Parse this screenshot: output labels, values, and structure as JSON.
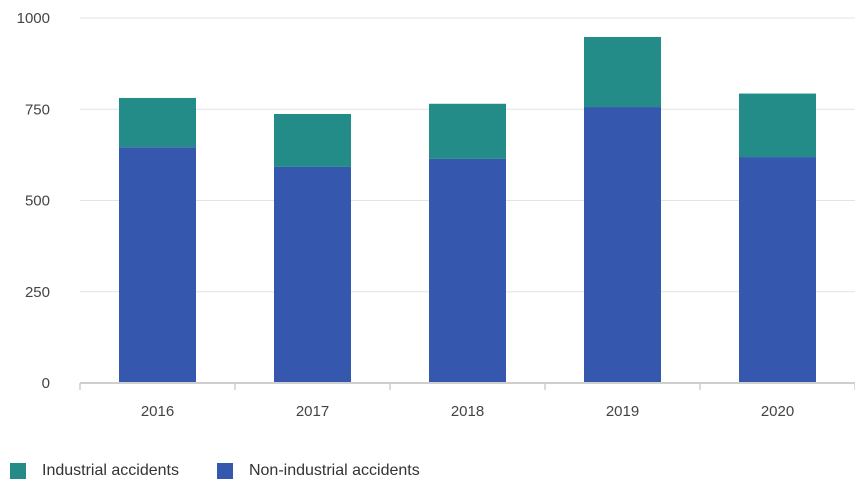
{
  "chart_data": {
    "type": "bar",
    "stacked": true,
    "categories": [
      "2016",
      "2017",
      "2018",
      "2019",
      "2020"
    ],
    "series": [
      {
        "name": "Non-industrial accidents",
        "values": [
          646,
          592,
          614,
          756,
          619
        ],
        "color": "#3557ad"
      },
      {
        "name": "Industrial accidents",
        "values": [
          135,
          145,
          151,
          192,
          174
        ],
        "color": "#238b88"
      }
    ],
    "ylim": [
      0,
      1000
    ],
    "yticks": [
      0,
      250,
      500,
      750,
      1000
    ],
    "ytick_labels": [
      "0",
      "250",
      "500",
      "750",
      "1000"
    ],
    "grid": true,
    "legend_position": "bottom-left",
    "legend_order": [
      "Industrial accidents",
      "Non-industrial accidents"
    ],
    "title": "",
    "xlabel": "",
    "ylabel": ""
  }
}
